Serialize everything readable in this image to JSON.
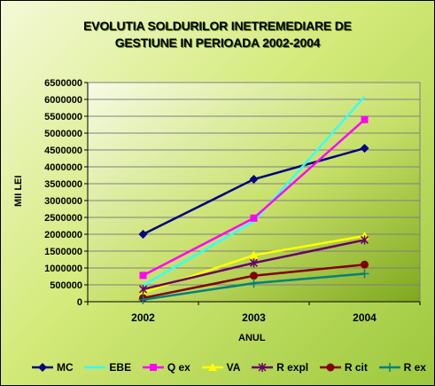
{
  "chart_data": {
    "type": "line",
    "title_lines": [
      "EVOLUTIA SOLDURILOR INETREMEDIARE DE",
      "GESTIUNE IN PERIOADA 2002-2004"
    ],
    "xlabel": "ANUL",
    "ylabel": "MII LEI",
    "categories": [
      "2002",
      "2003",
      "2004"
    ],
    "ylim": [
      0,
      6500000
    ],
    "yticks": [
      0,
      500000,
      1000000,
      1500000,
      2000000,
      2500000,
      3000000,
      3500000,
      4000000,
      4500000,
      5000000,
      5500000,
      6000000,
      6500000
    ],
    "ytick_labels": [
      "0",
      "500000",
      "1000000",
      "1500000",
      "2000000",
      "2500000",
      "3000000",
      "3500000",
      "4000000",
      "4500000",
      "5000000",
      "5500000",
      "6000000",
      "6500000"
    ],
    "grid": true,
    "legend_position": "bottom",
    "series": [
      {
        "name": "MC",
        "values": [
          2000000,
          3630000,
          4550000
        ],
        "color": "#000080",
        "marker": "diamond"
      },
      {
        "name": "EBE",
        "values": [
          480000,
          2380000,
          6080000
        ],
        "color": "#33ffff",
        "marker": "none"
      },
      {
        "name": "Q ex",
        "values": [
          780000,
          2480000,
          5400000
        ],
        "color": "#ff00ff",
        "marker": "square"
      },
      {
        "name": "VA",
        "values": [
          270000,
          1380000,
          1950000
        ],
        "color": "#ffff00",
        "marker": "triangle"
      },
      {
        "name": "R expl",
        "values": [
          370000,
          1150000,
          1830000
        ],
        "color": "#660066",
        "marker": "star"
      },
      {
        "name": "R cit",
        "values": [
          110000,
          770000,
          1100000
        ],
        "color": "#800000",
        "marker": "circle"
      },
      {
        "name": "R ex",
        "values": [
          60000,
          550000,
          830000
        ],
        "color": "#008080",
        "marker": "plus"
      }
    ]
  }
}
